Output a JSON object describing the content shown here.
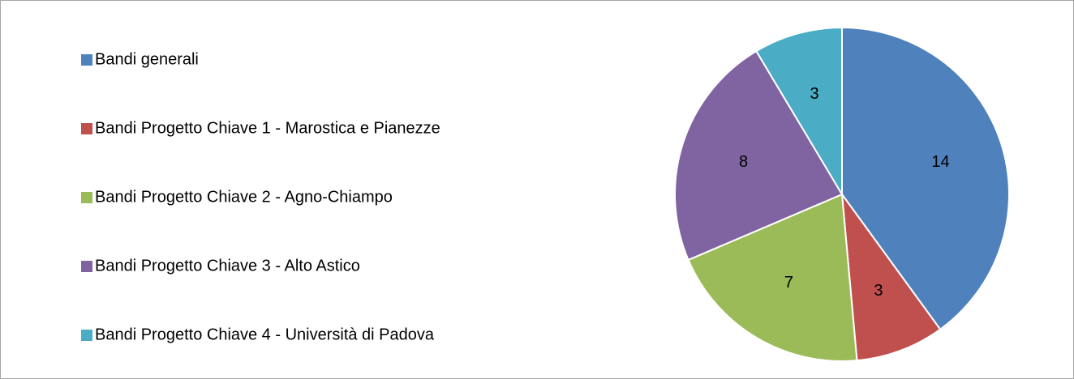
{
  "chart_data": {
    "type": "pie",
    "categories": [
      "Bandi generali",
      "Bandi Progetto Chiave 1 - Marostica e Pianezze",
      "Bandi Progetto Chiave 2 - Agno-Chiampo",
      "Bandi Progetto Chiave 3 - Alto Astico",
      "Bandi Progetto Chiave 4 - Università di Padova"
    ],
    "values": [
      14,
      3,
      7,
      8,
      3
    ],
    "colors": [
      "#4f81bd",
      "#c0504d",
      "#9bbb59",
      "#8064a2",
      "#4bacc6"
    ],
    "legend": "left"
  }
}
